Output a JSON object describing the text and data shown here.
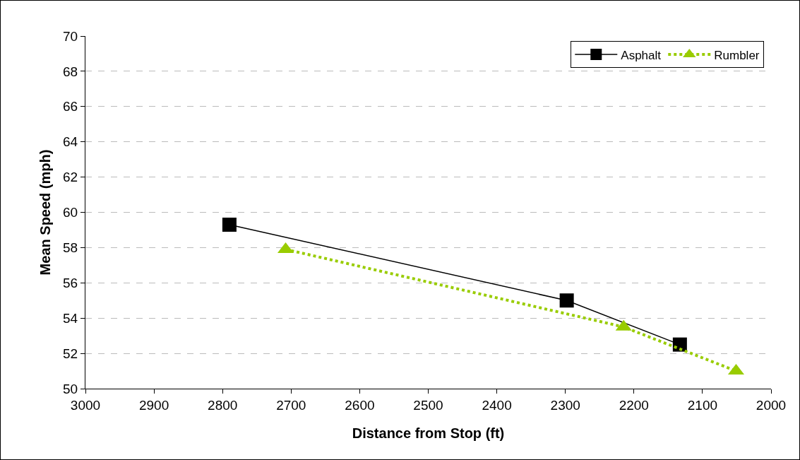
{
  "chart_data": {
    "type": "line",
    "xlabel": "Distance from Stop (ft)",
    "ylabel": "Mean Speed (mph)",
    "xlim": [
      3000,
      2000
    ],
    "xticks": [
      3000,
      2900,
      2800,
      2700,
      2600,
      2500,
      2400,
      2300,
      2200,
      2100,
      2000
    ],
    "ylim": [
      50,
      70
    ],
    "yticks": [
      50,
      52,
      54,
      56,
      58,
      60,
      62,
      64,
      66,
      68,
      70
    ],
    "grid": "y",
    "legend": "top right",
    "series": [
      {
        "name": "Asphalt",
        "color": "#000000",
        "x": [
          2790,
          2298,
          2133
        ],
        "values": [
          59.3,
          55.0,
          52.5
        ],
        "marker": "square",
        "line_style": "solid"
      },
      {
        "name": "Rumbler",
        "color": "#99cc00",
        "x": [
          2708,
          2215,
          2051
        ],
        "values": [
          57.9,
          53.5,
          51.0
        ],
        "marker": "triangle",
        "line_style": "dotted"
      }
    ]
  }
}
